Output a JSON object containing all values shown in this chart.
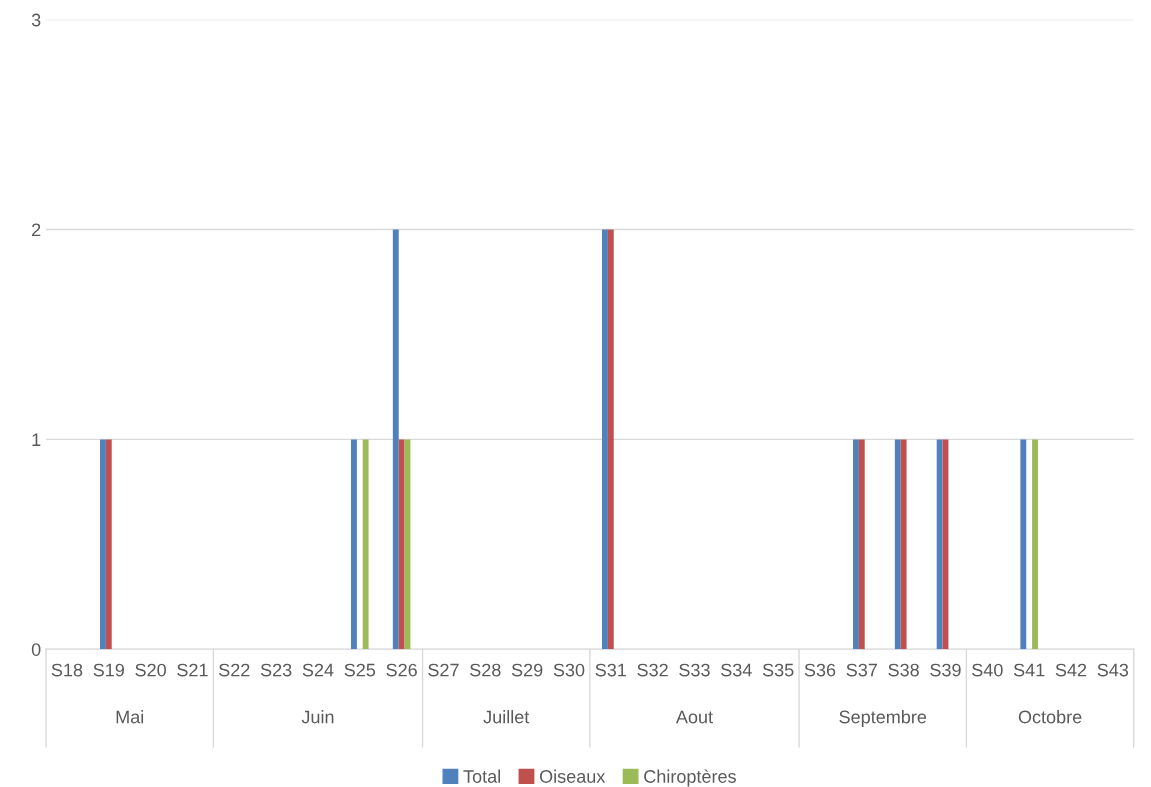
{
  "chart_data": {
    "type": "bar",
    "categories": [
      "S18",
      "S19",
      "S20",
      "S21",
      "S22",
      "S23",
      "S24",
      "S25",
      "S26",
      "S27",
      "S28",
      "S29",
      "S30",
      "S31",
      "S32",
      "S33",
      "S34",
      "S35",
      "S36",
      "S37",
      "S38",
      "S39",
      "S40",
      "S41",
      "S42",
      "S43"
    ],
    "series": [
      {
        "name": "Total",
        "color": "#4f81bd",
        "values": [
          0,
          1,
          0,
          0,
          0,
          0,
          0,
          1,
          2,
          0,
          0,
          0,
          0,
          2,
          0,
          0,
          0,
          0,
          0,
          1,
          1,
          1,
          0,
          1,
          0,
          0
        ]
      },
      {
        "name": "Oiseaux",
        "color": "#c0504d",
        "values": [
          0,
          1,
          0,
          0,
          0,
          0,
          0,
          0,
          1,
          0,
          0,
          0,
          0,
          2,
          0,
          0,
          0,
          0,
          0,
          1,
          1,
          1,
          0,
          0,
          0,
          0
        ]
      },
      {
        "name": "Chiroptères",
        "color": "#9bbb59",
        "values": [
          0,
          0,
          0,
          0,
          0,
          0,
          0,
          1,
          1,
          0,
          0,
          0,
          0,
          0,
          0,
          0,
          0,
          0,
          0,
          0,
          0,
          0,
          0,
          1,
          0,
          0
        ]
      }
    ],
    "annotations": [
      "Mai",
      "Juin",
      "Juillet",
      "Aout",
      "Septembre",
      "Octobre"
    ],
    "ylim": [
      0,
      3
    ],
    "yticks": [
      0,
      1,
      2,
      3
    ],
    "grid": "y",
    "legend": "bottom"
  }
}
